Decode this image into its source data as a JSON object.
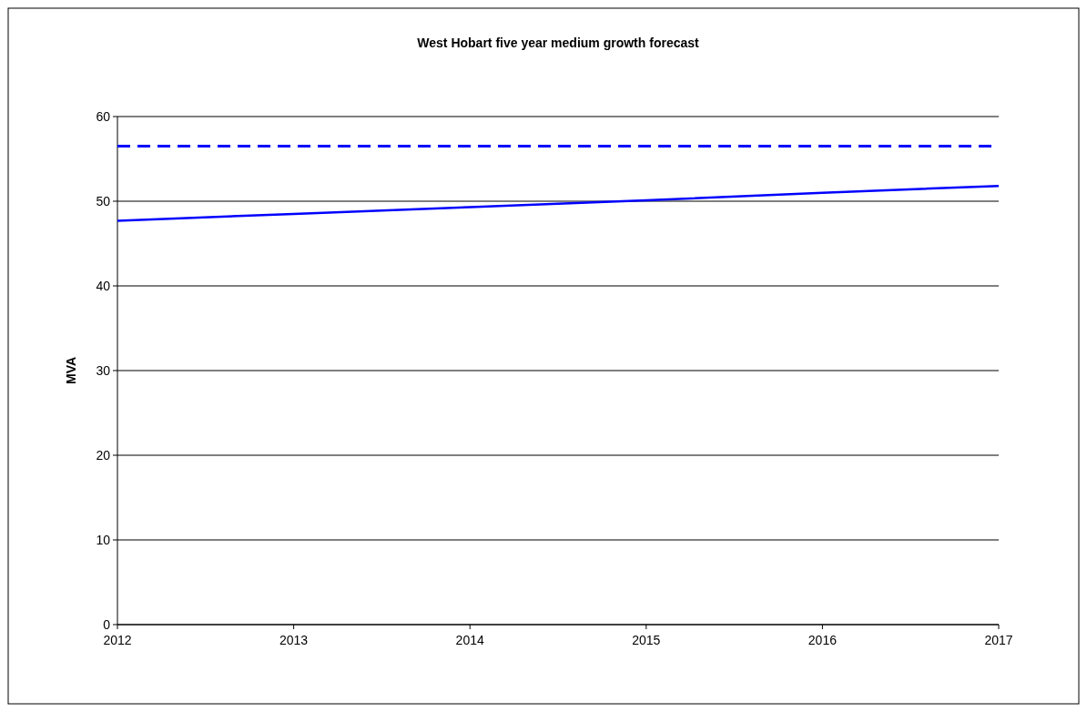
{
  "chart_data": {
    "type": "line",
    "title": "West Hobart five year medium growth forecast",
    "ylabel": "MVA",
    "x": [
      2012,
      2013,
      2014,
      2015,
      2016,
      2017
    ],
    "series": [
      {
        "color": "#0000ff",
        "values": [
          47.7,
          48.5,
          49.3,
          50.1,
          51.0,
          51.8
        ]
      }
    ],
    "xlim": [
      2012,
      2017
    ],
    "xticks": [
      2012,
      2013,
      2014,
      2015,
      2016,
      2017
    ],
    "ylim": [
      0,
      60
    ],
    "yticks": [
      0,
      10,
      20,
      30,
      40,
      50,
      60
    ],
    "ref_lines": [
      {
        "axis": "y",
        "value": 56.5,
        "color": "#0000ff",
        "line_style": "dashed"
      }
    ],
    "grid": "y",
    "marker": "none",
    "line_style": "solid"
  }
}
